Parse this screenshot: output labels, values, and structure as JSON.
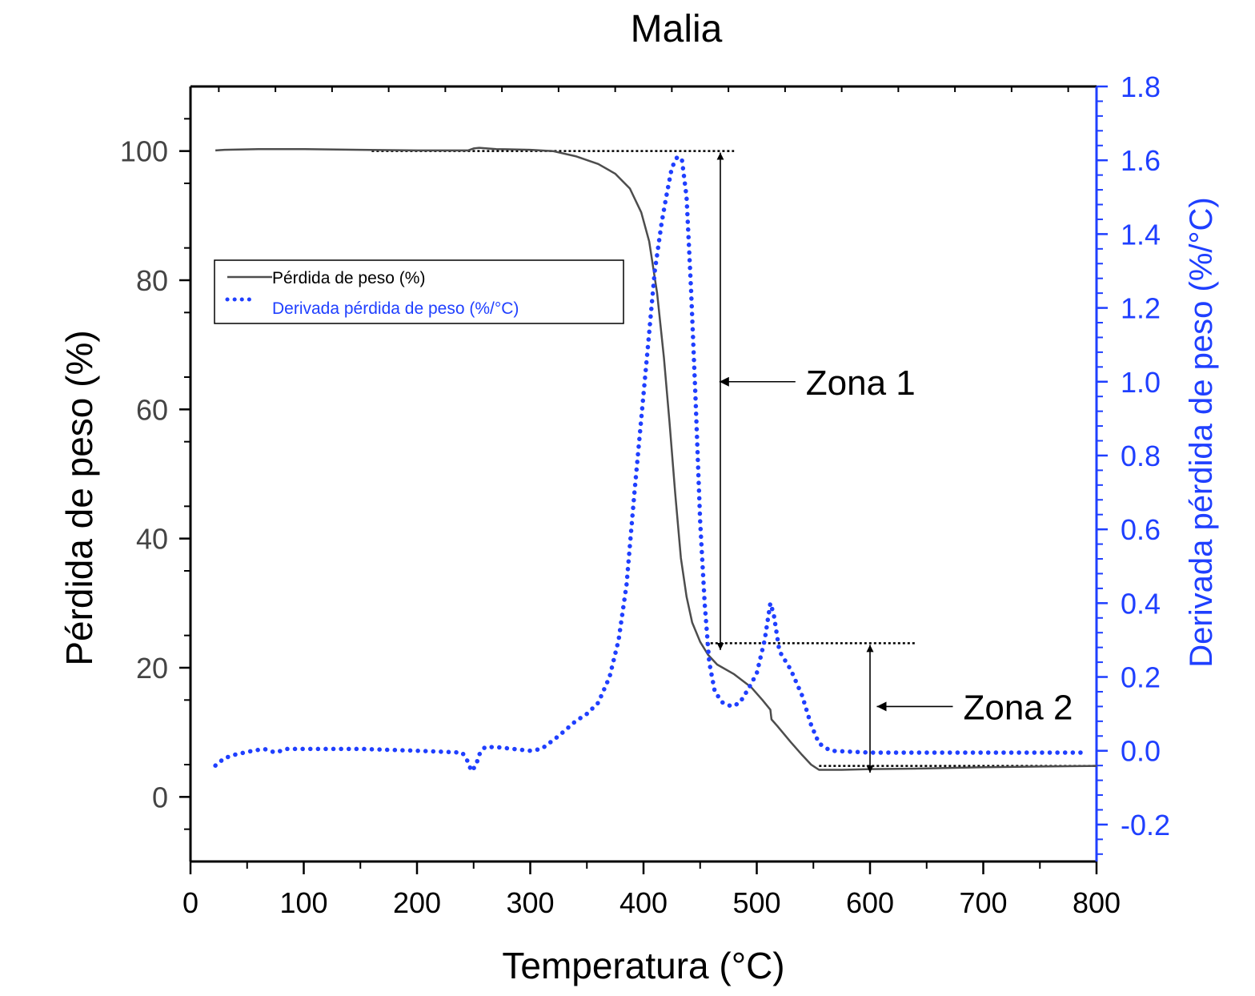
{
  "chart_data": {
    "type": "line",
    "title": "Malia",
    "xlabel": "Temperatura (°C)",
    "ylabel": "Pérdida de peso (%)",
    "y2label": "Derivada pérdida de peso (%/°C)",
    "xlim": [
      0,
      800
    ],
    "ylim": [
      -10,
      110
    ],
    "y2lim": [
      -0.3,
      1.8
    ],
    "grid": false,
    "legend_position": "upper-left",
    "x_ticks": [
      "0",
      "100",
      "200",
      "300",
      "400",
      "500",
      "600",
      "700",
      "800"
    ],
    "y_ticks": [
      "0",
      "20",
      "40",
      "60",
      "80",
      "100"
    ],
    "y2_ticks": [
      "-0.2",
      "0.0",
      "0.2",
      "0.4",
      "0.6",
      "0.8",
      "1.0",
      "1.2",
      "1.4",
      "1.6",
      "1.8"
    ],
    "colors": {
      "weight": "#4d4d4d",
      "derivative": "#1f3fff",
      "axis": "#000000",
      "reference": "#000000"
    },
    "series": [
      {
        "name": "Pérdida de peso (%)",
        "axis": "left",
        "style": "solid",
        "points": [
          [
            22,
            100.1
          ],
          [
            30,
            100.2
          ],
          [
            60,
            100.3
          ],
          [
            100,
            100.3
          ],
          [
            150,
            100.2
          ],
          [
            200,
            100.1
          ],
          [
            245,
            100.1
          ],
          [
            250,
            100.4
          ],
          [
            255,
            100.5
          ],
          [
            270,
            100.3
          ],
          [
            300,
            100.2
          ],
          [
            320,
            100.0
          ],
          [
            340,
            99.2
          ],
          [
            360,
            98.0
          ],
          [
            375,
            96.5
          ],
          [
            388,
            94.2
          ],
          [
            398,
            90.5
          ],
          [
            405,
            86.0
          ],
          [
            412,
            78.0
          ],
          [
            418,
            68.0
          ],
          [
            423,
            58.0
          ],
          [
            428,
            47.0
          ],
          [
            433,
            37.0
          ],
          [
            438,
            31.0
          ],
          [
            443,
            27.0
          ],
          [
            450,
            24.0
          ],
          [
            457,
            22.0
          ],
          [
            465,
            20.5
          ],
          [
            480,
            19.0
          ],
          [
            495,
            17.0
          ],
          [
            505,
            15.0
          ],
          [
            512,
            13.5
          ],
          [
            513,
            12.0
          ],
          [
            518,
            11.0
          ],
          [
            530,
            8.5
          ],
          [
            540,
            6.5
          ],
          [
            548,
            5.0
          ],
          [
            555,
            4.2
          ],
          [
            575,
            4.2
          ],
          [
            600,
            4.3
          ],
          [
            650,
            4.4
          ],
          [
            700,
            4.6
          ],
          [
            750,
            4.7
          ],
          [
            800,
            4.8
          ]
        ]
      },
      {
        "name": "Derivada pérdida de peso (%/°C)",
        "axis": "right",
        "style": "dotted",
        "points": [
          [
            22,
            -0.04
          ],
          [
            30,
            -0.02
          ],
          [
            40,
            -0.01
          ],
          [
            55,
            0.0
          ],
          [
            65,
            0.005
          ],
          [
            75,
            -0.005
          ],
          [
            85,
            0.005
          ],
          [
            100,
            0.005
          ],
          [
            150,
            0.005
          ],
          [
            200,
            0.0
          ],
          [
            240,
            -0.005
          ],
          [
            245,
            -0.03
          ],
          [
            248,
            -0.055
          ],
          [
            252,
            -0.04
          ],
          [
            255,
            -0.01
          ],
          [
            260,
            0.01
          ],
          [
            270,
            0.01
          ],
          [
            300,
            0.0
          ],
          [
            310,
            0.005
          ],
          [
            325,
            0.04
          ],
          [
            340,
            0.08
          ],
          [
            350,
            0.1
          ],
          [
            360,
            0.13
          ],
          [
            370,
            0.2
          ],
          [
            378,
            0.3
          ],
          [
            385,
            0.45
          ],
          [
            392,
            0.7
          ],
          [
            398,
            0.9
          ],
          [
            404,
            1.1
          ],
          [
            410,
            1.3
          ],
          [
            416,
            1.43
          ],
          [
            420,
            1.5
          ],
          [
            425,
            1.58
          ],
          [
            430,
            1.61
          ],
          [
            434,
            1.6
          ],
          [
            438,
            1.5
          ],
          [
            442,
            1.25
          ],
          [
            446,
            0.95
          ],
          [
            450,
            0.62
          ],
          [
            454,
            0.4
          ],
          [
            458,
            0.24
          ],
          [
            463,
            0.16
          ],
          [
            470,
            0.13
          ],
          [
            478,
            0.12
          ],
          [
            485,
            0.13
          ],
          [
            493,
            0.17
          ],
          [
            500,
            0.21
          ],
          [
            507,
            0.3
          ],
          [
            512,
            0.4
          ],
          [
            515,
            0.37
          ],
          [
            520,
            0.27
          ],
          [
            530,
            0.22
          ],
          [
            540,
            0.15
          ],
          [
            548,
            0.07
          ],
          [
            555,
            0.02
          ],
          [
            565,
            0.0
          ],
          [
            600,
            -0.005
          ],
          [
            650,
            -0.005
          ],
          [
            700,
            -0.005
          ],
          [
            750,
            -0.005
          ],
          [
            790,
            -0.005
          ]
        ]
      }
    ],
    "annotations": [
      {
        "text": "Zona 1",
        "arrow_at": [
          467,
          1.0
        ],
        "span_y": [
          22.5,
          100
        ]
      },
      {
        "text": "Zona 2",
        "arrow_at": [
          606,
          0.12
        ],
        "span_y": [
          3.5,
          23.8
        ]
      }
    ],
    "reference_lines": [
      {
        "y": 100,
        "x": [
          160,
          480
        ]
      },
      {
        "y": 23.8,
        "x": [
          455,
          640
        ]
      },
      {
        "y": 4.8,
        "x": [
          555,
          800
        ]
      }
    ]
  }
}
